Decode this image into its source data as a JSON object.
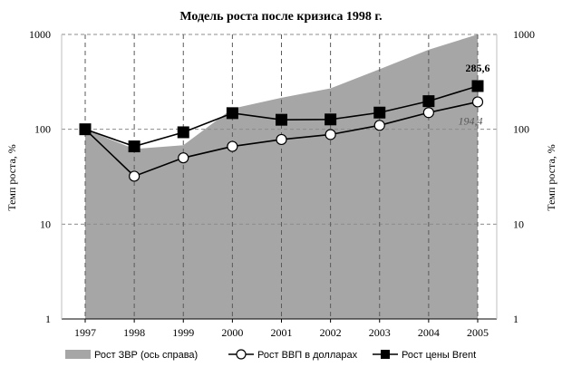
{
  "chart_data": {
    "type": "line",
    "title": "Модель роста после кризиса 1998 г.",
    "ylabel_left": "Темп роста, %",
    "ylabel_right": "Темп роста, %",
    "y_scale": "log",
    "ylim": [
      1,
      1000
    ],
    "y_ticks": [
      "1",
      "10",
      "100",
      "1000"
    ],
    "categories": [
      "1997",
      "1998",
      "1999",
      "2000",
      "2001",
      "2002",
      "2003",
      "2004",
      "2005"
    ],
    "gridlines_horizontal": "dashed",
    "gridlines_vertical": "dashed",
    "legend_position": "bottom",
    "series": [
      {
        "name": "Рост ЗВР (ось справа)",
        "kind": "area",
        "axis": "right",
        "color": "#a6a6a6",
        "values": [
          100,
          62,
          68,
          165,
          215,
          270,
          430,
          690,
          1000
        ]
      },
      {
        "name": "Рост ВВП в долларах",
        "kind": "line",
        "marker": "circle-open",
        "color": "#000000",
        "values": [
          100,
          32,
          50,
          66,
          78,
          88,
          110,
          150,
          194.4
        ]
      },
      {
        "name": "Рост цены Brent",
        "kind": "line",
        "marker": "square-filled",
        "color": "#000000",
        "values": [
          100,
          66,
          93,
          148,
          126,
          127,
          150,
          198,
          285.6
        ]
      }
    ],
    "annotations": [
      {
        "text": "285,6",
        "series": "Рост цены Brent",
        "category": "2005",
        "style": "bold"
      },
      {
        "text": "194,4",
        "series": "Рост ВВП в долларах",
        "category": "2005",
        "style": "italic"
      }
    ]
  }
}
